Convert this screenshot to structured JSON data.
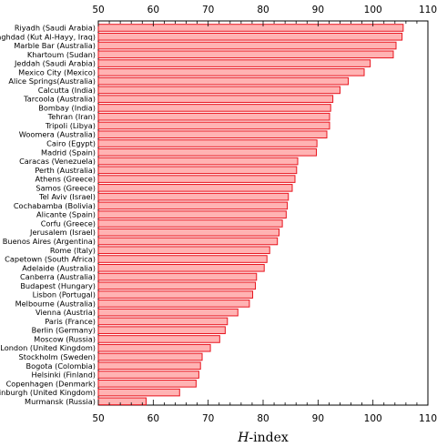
{
  "chart_data": {
    "type": "bar",
    "orientation": "horizontal",
    "xlabel": "H-index",
    "xlim": [
      50,
      110
    ],
    "xticks": [
      50,
      60,
      70,
      80,
      90,
      100,
      110
    ],
    "grid": false,
    "bar_color": "#ffb3b3",
    "bar_edge_color": "#e8141e",
    "categories": [
      "Riyadh (Saudi Arabia)",
      "Baghdad (Kut Al-Hayy, Iraq)",
      "Marble Bar (Australia)",
      "Khartoum (Sudan)",
      "Jeddah (Saudi Arabia)",
      "Mexico City (Mexico)",
      "Alice Springs(Australia)",
      "Calcutta (India)",
      "Tarcoola (Australia)",
      "Bombay (India)",
      "Tehran (Iran)",
      "Tripoli (Libya)",
      "Woomera (Australia)",
      "Cairo (Egypt)",
      "Madrid (Spain)",
      "Caracas (Venezuela)",
      "Perth (Australia)",
      "Athens (Greece)",
      "Samos (Greece)",
      "Tel Aviv (Israel)",
      "Cochabamba (Bolivia)",
      "Alicante (Spain)",
      "Corfu (Greece)",
      "Jerusalem (Israel)",
      "Buenos Aires (Argentina)",
      "Rome (Italy)",
      "Capetown (South Africa)",
      "Adelaide (Australia)",
      "Canberra (Australia)",
      "Budapest (Hungary)",
      "Lisbon (Portugal)",
      "Melbourne (Australia)",
      "Vienna (Austria)",
      "Paris (France)",
      "Berlin (Germany)",
      "Moscow (Russia)",
      "London (United Kingdom)",
      "Stockholm (Sweden)",
      "Bogota (Colombia)",
      "Helsinki (Finland)",
      "Copenhagen (Denmark)",
      "Edinburgh (United Kingdom)",
      "Murmansk (Russia)"
    ],
    "values": [
      105.5,
      105.3,
      104.2,
      103.7,
      99.5,
      98.4,
      95.5,
      94.0,
      92.7,
      92.3,
      92.1,
      92.1,
      91.6,
      89.8,
      89.7,
      86.3,
      86.1,
      85.8,
      85.3,
      84.6,
      84.4,
      84.2,
      83.5,
      82.9,
      82.6,
      81.2,
      80.7,
      80.2,
      78.8,
      78.6,
      78.1,
      77.5,
      75.4,
      73.5,
      73.1,
      72.1,
      70.4,
      68.9,
      68.6,
      68.3,
      67.8,
      64.8,
      58.7
    ]
  }
}
